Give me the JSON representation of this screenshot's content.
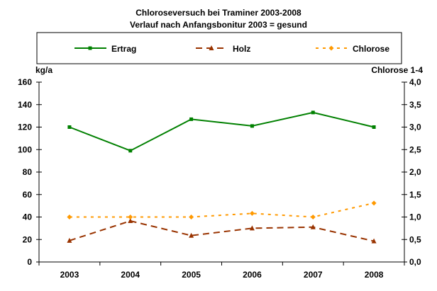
{
  "chart_data": {
    "type": "line",
    "title": "Chloroseversuch bei Traminer 2003-2008",
    "subtitle": "Verlauf nach Anfangsbonitur 2003 = gesund",
    "ylabel": "kg/a",
    "y2label": "Chlorose 1-4",
    "categories": [
      "2003",
      "2004",
      "2005",
      "2006",
      "2007",
      "2008"
    ],
    "ylim": [
      0,
      160
    ],
    "yticks": [
      "0",
      "20",
      "40",
      "60",
      "80",
      "100",
      "120",
      "140",
      "160"
    ],
    "y2lim": [
      0,
      4
    ],
    "y2ticks": [
      "0,0",
      "0,5",
      "1,0",
      "1,5",
      "2,0",
      "2,5",
      "3,0",
      "3,5",
      "4,0"
    ],
    "grid": false,
    "legend_placement": "top",
    "series": [
      {
        "name": "Ertrag",
        "axis": "left",
        "color": "#008000",
        "dash": "solid",
        "marker": "square",
        "values": [
          120,
          99,
          127,
          121,
          133,
          120
        ]
      },
      {
        "name": "Holz",
        "axis": "left",
        "color": "#993300",
        "dash": "dashed",
        "marker": "triangle",
        "values": [
          19,
          36.5,
          23.5,
          30,
          31,
          18.5
        ]
      },
      {
        "name": "Chlorose",
        "axis": "right",
        "color": "#FF9900",
        "dash": "dotted",
        "marker": "diamond",
        "values": [
          1.0,
          1.0,
          1.0,
          1.08,
          1.0,
          1.31
        ]
      }
    ]
  }
}
